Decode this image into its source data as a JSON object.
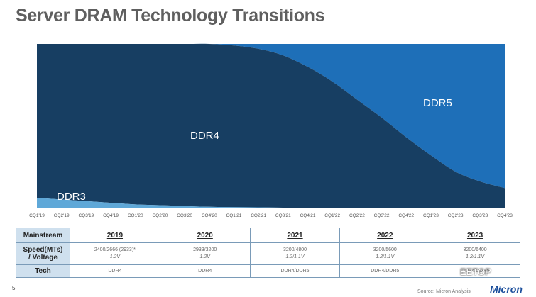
{
  "title": "Server DRAM Technology Transitions",
  "chart_data": {
    "type": "area",
    "stacked_percent": true,
    "categories": [
      "CQ1'19",
      "CQ2'19",
      "CQ3'19",
      "CQ4'19",
      "CQ1'20",
      "CQ2'20",
      "CQ3'20",
      "CQ4'20",
      "CQ1'21",
      "CQ2'21",
      "CQ3'21",
      "CQ4'21",
      "CQ1'22",
      "CQ2'22",
      "CQ3'22",
      "CQ4'22",
      "CQ1'23",
      "CQ2'23",
      "CQ3'23",
      "CQ4'23"
    ],
    "series": [
      {
        "name": "DDR3",
        "color": "#5fa8d8",
        "values": [
          6,
          5,
          4,
          3,
          2,
          1.5,
          1,
          0.5,
          0.3,
          0.2,
          0,
          0,
          0,
          0,
          0,
          0,
          0,
          0,
          0,
          0
        ]
      },
      {
        "name": "DDR4",
        "color": "#173e62",
        "values": [
          94,
          95,
          96,
          97,
          98,
          98.5,
          99,
          99.5,
          98.7,
          96.8,
          93,
          86,
          77,
          66,
          55,
          43,
          32,
          22,
          16,
          12
        ]
      },
      {
        "name": "DDR5",
        "color": "#1e6fb8",
        "values": [
          0,
          0,
          0,
          0,
          0,
          0,
          0,
          0,
          1,
          3,
          7,
          14,
          23,
          34,
          45,
          57,
          68,
          78,
          84,
          88
        ]
      }
    ],
    "ylim": [
      0,
      100
    ],
    "grid": false,
    "legend": "none"
  },
  "table": {
    "row_headers": [
      "Mainstream",
      "Speed(MTs)\n/ Voltage",
      "Tech"
    ],
    "years": [
      "2019",
      "2020",
      "2021",
      "2022",
      "2023"
    ],
    "speeds": [
      "2400/2666 (2933)*",
      "2933/3200",
      "3200/4800",
      "3200/5600",
      "3200/6400"
    ],
    "voltages": [
      "1.2V",
      "1.2V",
      "1.2/1.1V",
      "1.2/1.1V",
      "1.2/1.1V"
    ],
    "tech": [
      "DDR4",
      "DDR4",
      "DDR4/DDR5",
      "DDR4/DDR5",
      "DDR4/DDR5"
    ]
  },
  "footer": {
    "page": "5",
    "source": "Source:  Micron Analysis",
    "logo": "Micron",
    "watermark": "EETOP"
  }
}
